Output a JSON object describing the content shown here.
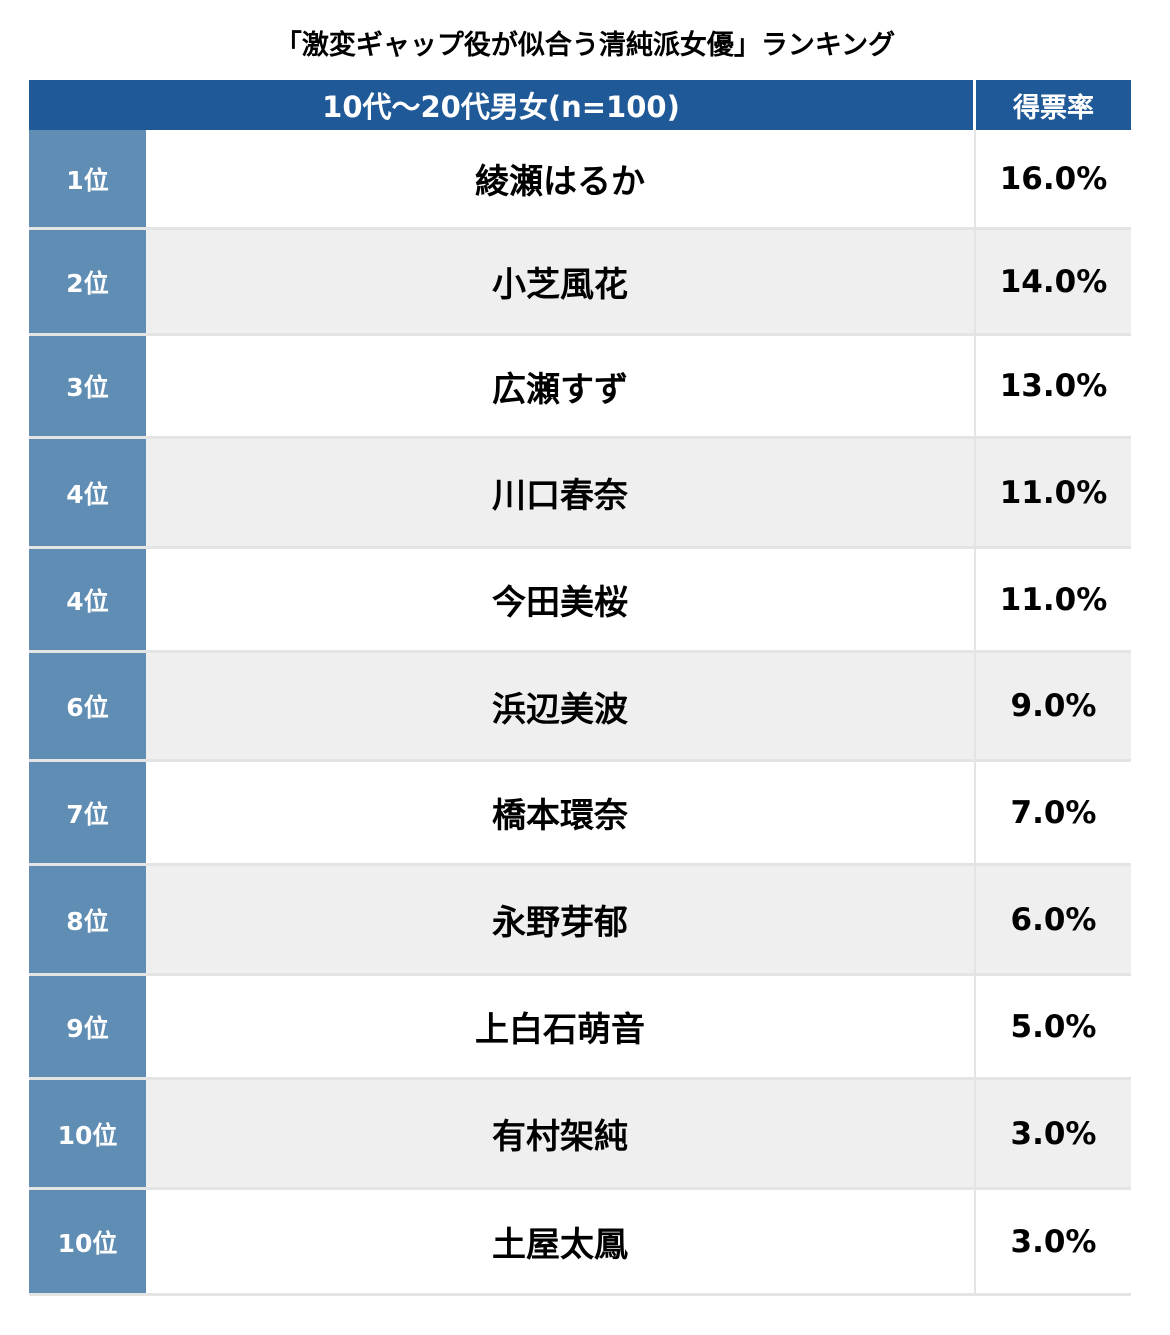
{
  "chart_data": {
    "type": "table",
    "title": "「激変ギャップ役が似合う清純派女優」ランキング",
    "columns": [
      "10代〜20代男女(n=100)",
      "得票率"
    ],
    "rows": [
      {
        "rank": "1位",
        "name": "綾瀬はるか",
        "rate": "16.0%",
        "value": 16.0
      },
      {
        "rank": "2位",
        "name": "小芝風花",
        "rate": "14.0%",
        "value": 14.0
      },
      {
        "rank": "3位",
        "name": "広瀬すず",
        "rate": "13.0%",
        "value": 13.0
      },
      {
        "rank": "4位",
        "name": "川口春奈",
        "rate": "11.0%",
        "value": 11.0
      },
      {
        "rank": "4位",
        "name": "今田美桜",
        "rate": "11.0%",
        "value": 11.0
      },
      {
        "rank": "6位",
        "name": "浜辺美波",
        "rate": "9.0%",
        "value": 9.0
      },
      {
        "rank": "7位",
        "name": "橋本環奈",
        "rate": "7.0%",
        "value": 7.0
      },
      {
        "rank": "8位",
        "name": "永野芽郁",
        "rate": "6.0%",
        "value": 6.0
      },
      {
        "rank": "9位",
        "name": "上白石萌音",
        "rate": "5.0%",
        "value": 5.0
      },
      {
        "rank": "10位",
        "name": "有村架純",
        "rate": "3.0%",
        "value": 3.0
      },
      {
        "rank": "10位",
        "name": "土屋太鳳",
        "rate": "3.0%",
        "value": 3.0
      }
    ]
  },
  "colors": {
    "header_bg": "#1f5997",
    "rank_bg": "#5f8db4",
    "row_alt_bg": "#efefef"
  }
}
